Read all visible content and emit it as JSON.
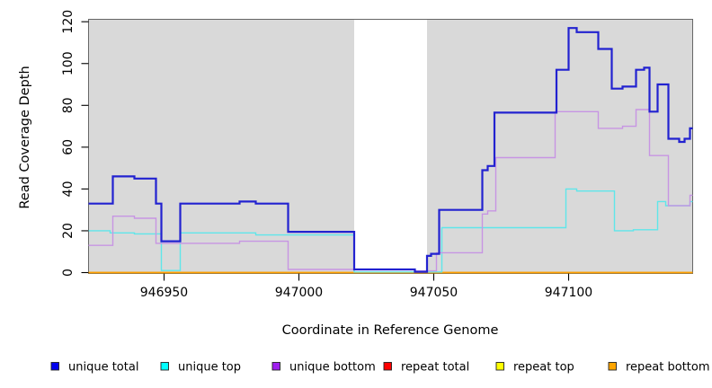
{
  "chart_data": {
    "type": "line",
    "subtype": "step",
    "title": "",
    "xlabel": "Coordinate in Reference Genome",
    "ylabel": "Read Coverage Depth",
    "xlim": [
      946922,
      947146
    ],
    "ylim": [
      0,
      120
    ],
    "x_ticks": [
      946950,
      947000,
      947050,
      947100
    ],
    "y_ticks": [
      0,
      20,
      40,
      60,
      80,
      100,
      120
    ],
    "grid": false,
    "plot_bg_color": "#d9d9d9",
    "box_color": "#666666",
    "masked_region": {
      "x_start": 947020.5,
      "x_end": 947047.5,
      "color": "#ffffff"
    },
    "legend_position": "bottom",
    "series": [
      {
        "name": "unique total",
        "legend_color": "#0000ee",
        "line_color": "#2222d0",
        "line_width": 2.2,
        "steps": [
          [
            946922,
            33
          ],
          [
            946931,
            46
          ],
          [
            946939,
            45
          ],
          [
            946947,
            33
          ],
          [
            946949,
            15
          ],
          [
            946956,
            33
          ],
          [
            946978,
            34
          ],
          [
            946984,
            33
          ],
          [
            946996,
            19.5
          ],
          [
            947020.5,
            1.5
          ],
          [
            947043,
            0.4
          ],
          [
            947047.5,
            8
          ],
          [
            947049,
            9
          ],
          [
            947052,
            30
          ],
          [
            947068,
            49
          ],
          [
            947070,
            51
          ],
          [
            947072.5,
            76.5
          ],
          [
            947095.5,
            97
          ],
          [
            947100,
            117
          ],
          [
            947103,
            115
          ],
          [
            947111,
            107
          ],
          [
            947116,
            88
          ],
          [
            947120,
            89
          ],
          [
            947125,
            97
          ],
          [
            947128,
            98
          ],
          [
            947130,
            77
          ],
          [
            947133,
            90
          ],
          [
            947137,
            64
          ],
          [
            947141,
            62.5
          ],
          [
            947143,
            64
          ],
          [
            947145,
            69
          ]
        ]
      },
      {
        "name": "unique top",
        "legend_color": "#00ffff",
        "line_color": "#5fe6ea",
        "line_width": 1.4,
        "steps": [
          [
            946922,
            20
          ],
          [
            946930,
            19
          ],
          [
            946939,
            18.5
          ],
          [
            946949,
            1
          ],
          [
            946956,
            19
          ],
          [
            946984,
            18
          ],
          [
            947020.5,
            0.3
          ],
          [
            947053,
            21.5
          ],
          [
            947099,
            40
          ],
          [
            947103,
            39
          ],
          [
            947117,
            20
          ],
          [
            947124,
            20.5
          ],
          [
            947133,
            34
          ],
          [
            947136,
            32
          ],
          [
            947145,
            34
          ]
        ]
      },
      {
        "name": "unique bottom",
        "legend_color": "#a020f0",
        "line_color": "#c795e3",
        "line_width": 1.4,
        "steps": [
          [
            946922,
            13
          ],
          [
            946931,
            27
          ],
          [
            946939,
            26
          ],
          [
            946947,
            14
          ],
          [
            946978,
            15
          ],
          [
            946996,
            1.5
          ],
          [
            947043,
            0.8
          ],
          [
            947051,
            9.5
          ],
          [
            947068,
            28
          ],
          [
            947070,
            29.5
          ],
          [
            947073,
            55
          ],
          [
            947095,
            77
          ],
          [
            947111,
            69
          ],
          [
            947120,
            70
          ],
          [
            947125,
            78
          ],
          [
            947130,
            56
          ],
          [
            947137,
            32
          ],
          [
            947145,
            37
          ]
        ]
      },
      {
        "name": "repeat total",
        "legend_color": "#ff0000",
        "line_color": "#e00000",
        "line_width": 1.4,
        "steps": [
          [
            946922,
            0
          ]
        ]
      },
      {
        "name": "repeat top",
        "legend_color": "#ffff00",
        "line_color": "#f5f500",
        "line_width": 1.4,
        "steps": [
          [
            946922,
            0
          ]
        ]
      },
      {
        "name": "repeat bottom",
        "legend_color": "#ffa500",
        "line_color": "#ff9f00",
        "line_width": 1.6,
        "steps": [
          [
            946922,
            0
          ]
        ]
      }
    ]
  }
}
